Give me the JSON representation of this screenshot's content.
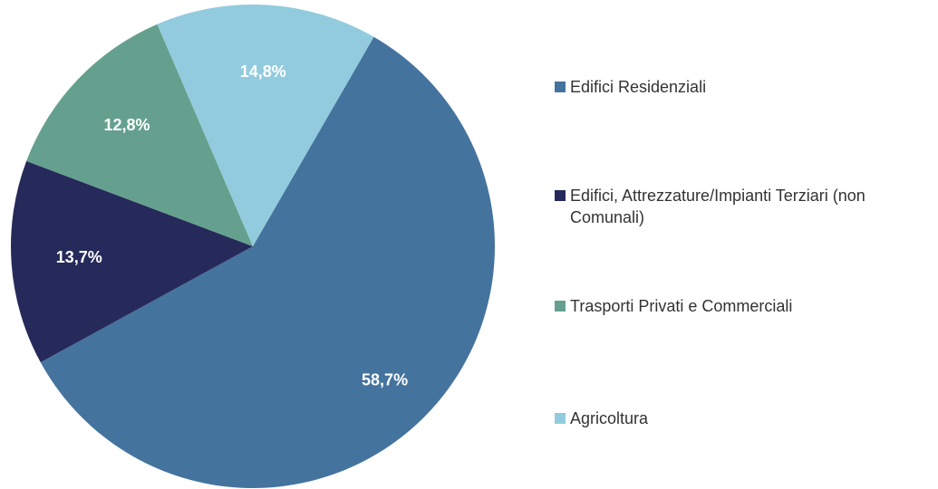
{
  "chart_data": {
    "type": "pie",
    "categories": [
      "Edifici Residenziali",
      "Edifici, Attrezzature/Impianti Terziari (non Comunali)",
      "Trasporti Privati e Commerciali",
      "Agricoltura"
    ],
    "values": [
      58.7,
      13.7,
      12.8,
      14.8
    ],
    "value_labels": [
      "58,7%",
      "13,7%",
      "12,8%",
      "14,8%"
    ],
    "colors": [
      "#44739e",
      "#262a5a",
      "#65a08e",
      "#92cbdd"
    ],
    "legend": "right"
  }
}
